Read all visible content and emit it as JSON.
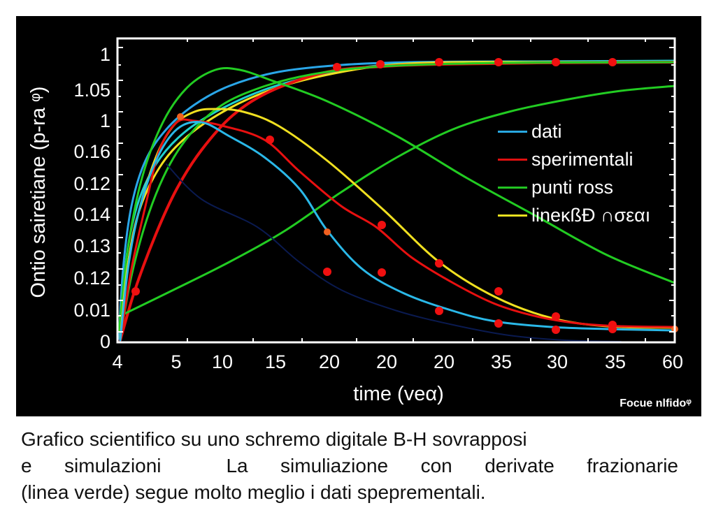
{
  "chart_data": {
    "type": "line",
    "title": "",
    "xlabel": "time (veα)",
    "ylabel": "Ontio sairetiane (p-ra ᵠ)",
    "x_tick_labels": [
      "4",
      "5",
      "10",
      "15",
      "20",
      "20",
      "20",
      "35",
      "30",
      "35",
      "60"
    ],
    "y_tick_labels": [
      "1",
      "1.05",
      "1",
      "0.16",
      "0.12",
      "0.14",
      "0.13",
      "0.12",
      "0.01",
      "0"
    ],
    "grid": false,
    "legend_position": "right-center inside plot",
    "legend": [
      {
        "label": "dati",
        "color": "#29a8e0"
      },
      {
        "label": "sperimentali",
        "color": "#e01010"
      },
      {
        "label": "punti ross",
        "color": "#22c422"
      },
      {
        "label": "lineĸßƉ ∩σεαı",
        "color": "#e8e020"
      }
    ],
    "note": "Curve coordinates are plot-relative pixels (plot 797x435, origin top-left); axis tick labels are non-monotonic as rendered.",
    "series": [
      {
        "name": "blue-saturating",
        "color": "#2aa6e8",
        "width": 3,
        "points": [
          [
            2,
            430
          ],
          [
            8,
            330
          ],
          [
            20,
            240
          ],
          [
            40,
            175
          ],
          [
            70,
            130
          ],
          [
            110,
            95
          ],
          [
            160,
            68
          ],
          [
            230,
            48
          ],
          [
            320,
            38
          ],
          [
            420,
            34
          ],
          [
            560,
            33
          ],
          [
            797,
            33
          ]
        ]
      },
      {
        "name": "cyan-saturating",
        "color": "#20d0d0",
        "width": 3,
        "points": [
          [
            4,
            430
          ],
          [
            12,
            320
          ],
          [
            28,
            240
          ],
          [
            55,
            180
          ],
          [
            95,
            135
          ],
          [
            150,
            100
          ],
          [
            220,
            70
          ],
          [
            300,
            50
          ],
          [
            380,
            38
          ],
          [
            470,
            34
          ],
          [
            600,
            33
          ],
          [
            797,
            32
          ]
        ]
      },
      {
        "name": "yellow-saturating",
        "color": "#f0e020",
        "width": 3,
        "points": [
          [
            4,
            430
          ],
          [
            14,
            330
          ],
          [
            30,
            250
          ],
          [
            60,
            185
          ],
          [
            100,
            140
          ],
          [
            160,
            100
          ],
          [
            230,
            70
          ],
          [
            310,
            50
          ],
          [
            390,
            38
          ],
          [
            480,
            34
          ],
          [
            620,
            34
          ],
          [
            797,
            34
          ]
        ]
      },
      {
        "name": "red-saturating",
        "color": "#e81010",
        "width": 4,
        "points": [
          [
            4,
            432
          ],
          [
            25,
            360
          ],
          [
            55,
            280
          ],
          [
            85,
            215
          ],
          [
            120,
            160
          ],
          [
            165,
            110
          ],
          [
            220,
            75
          ],
          [
            300,
            48
          ],
          [
            380,
            40
          ],
          [
            460,
            37
          ],
          [
            600,
            35
          ],
          [
            797,
            34
          ]
        ]
      },
      {
        "name": "green-early-peak",
        "color": "#22cc22",
        "width": 3,
        "points": [
          [
            2,
            420
          ],
          [
            15,
            300
          ],
          [
            35,
            200
          ],
          [
            65,
            120
          ],
          [
            100,
            70
          ],
          [
            140,
            45
          ],
          [
            175,
            45
          ],
          [
            220,
            60
          ],
          [
            300,
            90
          ],
          [
            400,
            140
          ],
          [
            500,
            200
          ],
          [
            600,
            255
          ],
          [
            700,
            310
          ],
          [
            797,
            350
          ]
        ]
      },
      {
        "name": "green-slow-rise",
        "color": "#22cc22",
        "width": 3,
        "points": [
          [
            2,
            398
          ],
          [
            80,
            360
          ],
          [
            160,
            320
          ],
          [
            240,
            275
          ],
          [
            320,
            220
          ],
          [
            400,
            170
          ],
          [
            480,
            130
          ],
          [
            560,
            105
          ],
          [
            640,
            88
          ],
          [
            720,
            75
          ],
          [
            797,
            68
          ]
        ]
      },
      {
        "name": "green-mid",
        "color": "#22cc22",
        "width": 3,
        "points": [
          [
            4,
            430
          ],
          [
            20,
            340
          ],
          [
            45,
            250
          ],
          [
            75,
            180
          ],
          [
            110,
            130
          ],
          [
            150,
            95
          ],
          [
            200,
            72
          ],
          [
            260,
            55
          ],
          [
            330,
            44
          ],
          [
            420,
            38
          ],
          [
            560,
            35
          ],
          [
            797,
            34
          ]
        ]
      },
      {
        "name": "yellow-peak",
        "color": "#f0e020",
        "width": 3,
        "points": [
          [
            4,
            430
          ],
          [
            14,
            330
          ],
          [
            30,
            250
          ],
          [
            55,
            170
          ],
          [
            80,
            125
          ],
          [
            110,
            105
          ],
          [
            140,
            101
          ],
          [
            180,
            105
          ],
          [
            230,
            125
          ],
          [
            300,
            175
          ],
          [
            380,
            245
          ],
          [
            460,
            320
          ],
          [
            540,
            370
          ],
          [
            620,
            400
          ],
          [
            700,
            412
          ],
          [
            797,
            414
          ]
        ]
      },
      {
        "name": "red-peak",
        "color": "#e81010",
        "width": 3,
        "points": [
          [
            4,
            432
          ],
          [
            20,
            330
          ],
          [
            40,
            240
          ],
          [
            60,
            160
          ],
          [
            85,
            120
          ],
          [
            110,
            118
          ],
          [
            150,
            125
          ],
          [
            210,
            145
          ],
          [
            260,
            190
          ],
          [
            320,
            240
          ],
          [
            370,
            270
          ],
          [
            420,
            313
          ],
          [
            480,
            350
          ],
          [
            540,
            380
          ],
          [
            600,
            398
          ],
          [
            660,
            408
          ],
          [
            720,
            412
          ],
          [
            797,
            413
          ]
        ]
      },
      {
        "name": "blue-peak",
        "color": "#2ab8e8",
        "width": 3,
        "points": [
          [
            4,
            432
          ],
          [
            15,
            330
          ],
          [
            30,
            250
          ],
          [
            55,
            175
          ],
          [
            85,
            130
          ],
          [
            120,
            120
          ],
          [
            160,
            140
          ],
          [
            210,
            170
          ],
          [
            260,
            215
          ],
          [
            300,
            275
          ],
          [
            350,
            330
          ],
          [
            410,
            365
          ],
          [
            480,
            390
          ],
          [
            540,
            405
          ],
          [
            620,
            413
          ],
          [
            700,
            416
          ],
          [
            797,
            418
          ]
        ]
      },
      {
        "name": "dark-blue-faint",
        "color": "#0a1a50",
        "width": 2,
        "points": [
          [
            70,
            180
          ],
          [
            120,
            230
          ],
          [
            200,
            270
          ],
          [
            260,
            320
          ],
          [
            320,
            360
          ],
          [
            400,
            390
          ],
          [
            480,
            410
          ],
          [
            560,
            425
          ],
          [
            640,
            432
          ],
          [
            720,
            434
          ]
        ]
      }
    ],
    "markers": [
      {
        "color": "#f01010",
        "r": 6,
        "points": [
          [
            26,
            362
          ],
          [
            314,
            41
          ],
          [
            376,
            37
          ],
          [
            460,
            34
          ],
          [
            545,
            34
          ],
          [
            627,
            34
          ],
          [
            708,
            34
          ]
        ]
      },
      {
        "color": "#f01010",
        "r": 6,
        "points": [
          [
            218,
            145
          ],
          [
            378,
            267
          ],
          [
            460,
            322
          ],
          [
            545,
            362
          ],
          [
            627,
            398
          ],
          [
            708,
            410
          ]
        ]
      },
      {
        "color": "#f01010",
        "r": 6,
        "points": [
          [
            300,
            334
          ],
          [
            378,
            335
          ],
          [
            460,
            390
          ],
          [
            545,
            408
          ],
          [
            627,
            417
          ],
          [
            708,
            416
          ]
        ]
      },
      {
        "color": "#f06020",
        "r": 5,
        "points": [
          [
            90,
            112
          ],
          [
            300,
            277
          ],
          [
            797,
            416
          ]
        ]
      }
    ]
  },
  "panel": {
    "watermark": "Focue nlfidoᵠ"
  },
  "caption": {
    "line1": "Grafico scientifico su uno schremo digitale B-H sovrapposi",
    "line2_words": [
      "e",
      "simulazioni",
      "",
      "La",
      "simuliazione",
      "con",
      "derivate",
      "frazionarie"
    ],
    "line3": "(linea verde) segue molto meglio i dati speprementali."
  }
}
